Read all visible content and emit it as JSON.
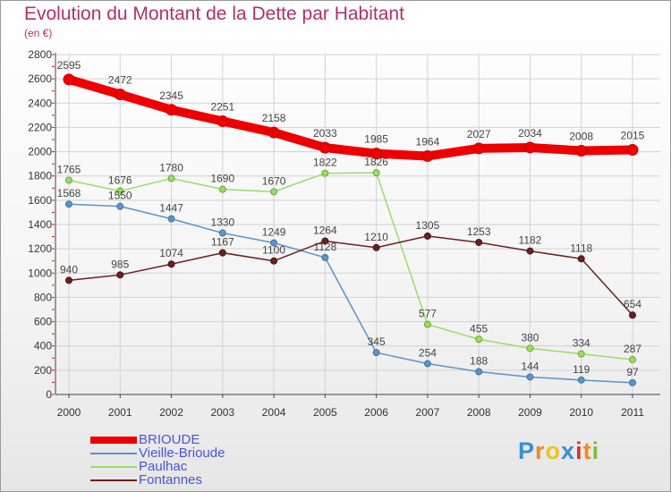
{
  "title": "Evolution du Montant de la Dette par Habitant",
  "subtitle": "(en €)",
  "logo": {
    "text": "Proxiti",
    "letters": [
      "P",
      "r",
      "o",
      "x",
      "i",
      "t",
      "i"
    ],
    "colors": [
      "#3a8fd8",
      "#f08a1e",
      "#f0c020",
      "#3a8fd8",
      "#d8342c",
      "#f08a1e",
      "#7cc03c"
    ]
  },
  "chart_data": {
    "type": "line",
    "categories": [
      "2000",
      "2001",
      "2002",
      "2003",
      "2004",
      "2005",
      "2006",
      "2007",
      "2008",
      "2009",
      "2010",
      "2011"
    ],
    "ylim": [
      0,
      2800
    ],
    "yticks": [
      0,
      200,
      400,
      600,
      800,
      1000,
      1200,
      1400,
      1600,
      1800,
      2000,
      2200,
      2400,
      2600,
      2800
    ],
    "grid": true,
    "legend": "bottom-left",
    "series": [
      {
        "name": "BRIOUDE",
        "color": "#ee0000",
        "values": [
          2595,
          2472,
          2345,
          2251,
          2158,
          2033,
          1985,
          1964,
          2027,
          2034,
          2008,
          2015
        ]
      },
      {
        "name": "Vieille-Brioude",
        "color": "#5b94c8",
        "values": [
          1568,
          1550,
          1447,
          1330,
          1249,
          1128,
          345,
          254,
          188,
          144,
          119,
          97
        ]
      },
      {
        "name": "Paulhac",
        "color": "#99dd66",
        "values": [
          1765,
          1676,
          1780,
          1690,
          1670,
          1822,
          1826,
          577,
          455,
          380,
          334,
          287
        ]
      },
      {
        "name": "Fontannes",
        "color": "#6e1f22",
        "values": [
          940,
          985,
          1074,
          1167,
          1100,
          1264,
          1210,
          1305,
          1253,
          1182,
          1118,
          654
        ]
      }
    ]
  }
}
